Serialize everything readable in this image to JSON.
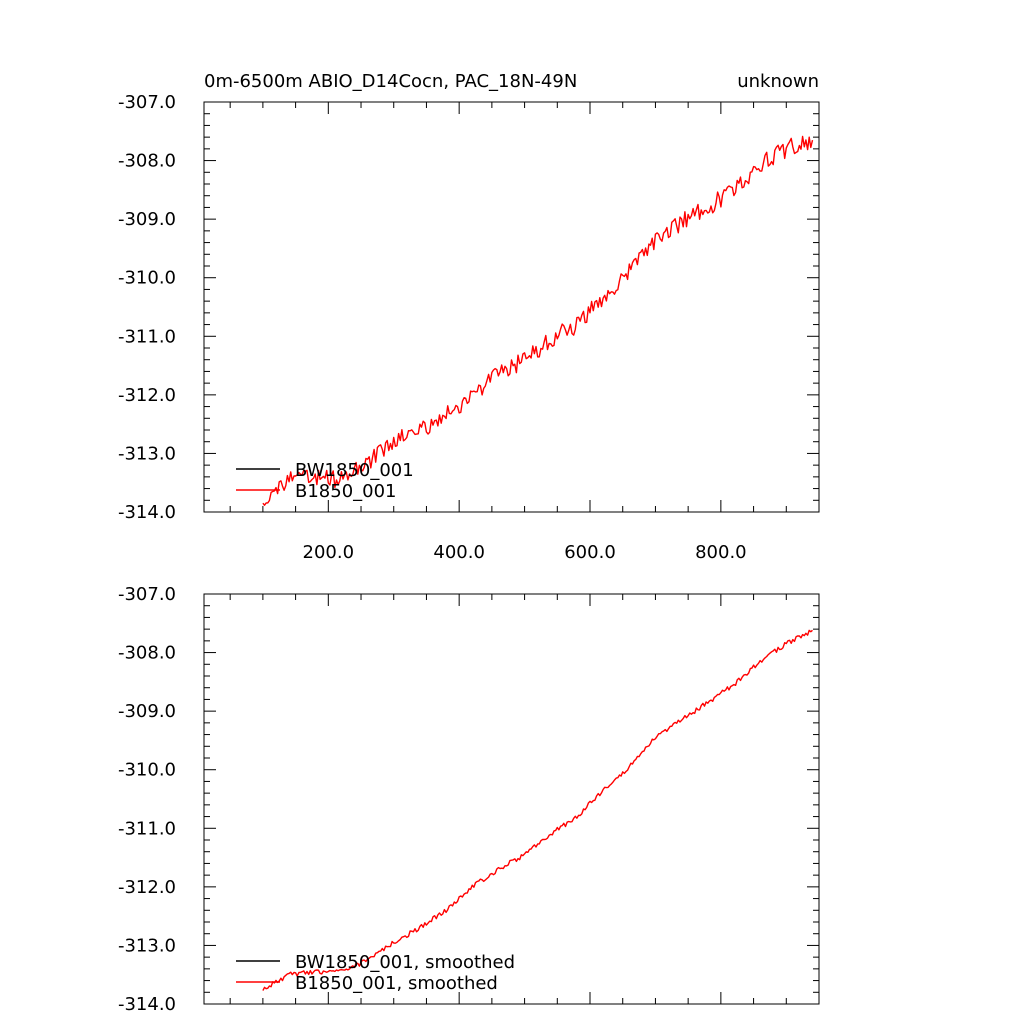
{
  "chart_data": [
    {
      "type": "line",
      "title": "0m-6500m ABIO_D14Cocn, PAC_18N-49N",
      "right_title": "unknown",
      "xlabel": "",
      "ylabel": "",
      "xlim": [
        10,
        950
      ],
      "ylim": [
        -314.0,
        -307.0
      ],
      "xticks": [
        200,
        400,
        600,
        800
      ],
      "xtick_labels": [
        "200.0",
        "400.0",
        "600.0",
        "800.0"
      ],
      "yticks": [
        -307,
        -308,
        -309,
        -310,
        -311,
        -312,
        -313,
        -314
      ],
      "ytick_labels": [
        "-307.0",
        "-308.0",
        "-309.0",
        "-310.0",
        "-311.0",
        "-312.0",
        "-313.0",
        "-314.0"
      ],
      "grid": false,
      "legend_position": "bottom-left",
      "series": [
        {
          "name": "BW1850_001",
          "color": "#000000",
          "x": [],
          "y": []
        },
        {
          "name": "B1850_001",
          "color": "#ff0000",
          "x": [
            100,
            140,
            180,
            220,
            260,
            300,
            340,
            380,
            420,
            460,
            500,
            540,
            580,
            620,
            660,
            700,
            740,
            780,
            820,
            860,
            900,
            940
          ],
          "y": [
            -313.8,
            -313.45,
            -313.4,
            -313.45,
            -313.15,
            -312.8,
            -312.6,
            -312.35,
            -312.0,
            -311.65,
            -311.4,
            -311.05,
            -310.8,
            -310.35,
            -309.9,
            -309.35,
            -309.05,
            -308.8,
            -308.5,
            -308.05,
            -307.8,
            -307.65
          ],
          "noise_amplitude": 0.15
        }
      ]
    },
    {
      "type": "line",
      "title": "",
      "xlabel": "",
      "ylabel": "",
      "xlim": [
        10,
        950
      ],
      "ylim": [
        -314.0,
        -307.0
      ],
      "xticks": [
        200,
        400,
        600,
        800
      ],
      "xtick_labels": [],
      "yticks": [
        -307,
        -308,
        -309,
        -310,
        -311,
        -312,
        -313,
        -314
      ],
      "ytick_labels": [
        "-307.0",
        "-308.0",
        "-309.0",
        "-310.0",
        "-311.0",
        "-312.0",
        "-313.0",
        "-314.0"
      ],
      "grid": false,
      "legend_position": "bottom-left",
      "series": [
        {
          "name": "BW1850_001, smoothed",
          "color": "#000000",
          "x": [],
          "y": []
        },
        {
          "name": "B1850_001, smoothed",
          "color": "#ff0000",
          "x": [
            100,
            140,
            180,
            220,
            260,
            300,
            340,
            380,
            420,
            460,
            500,
            540,
            580,
            620,
            660,
            700,
            740,
            780,
            820,
            860,
            900,
            940
          ],
          "y": [
            -313.75,
            -313.5,
            -313.45,
            -313.45,
            -313.25,
            -312.95,
            -312.7,
            -312.4,
            -312.0,
            -311.7,
            -311.45,
            -311.1,
            -310.8,
            -310.35,
            -309.95,
            -309.45,
            -309.15,
            -308.85,
            -308.55,
            -308.15,
            -307.85,
            -307.62
          ],
          "noise_amplitude": 0.04
        }
      ]
    }
  ]
}
